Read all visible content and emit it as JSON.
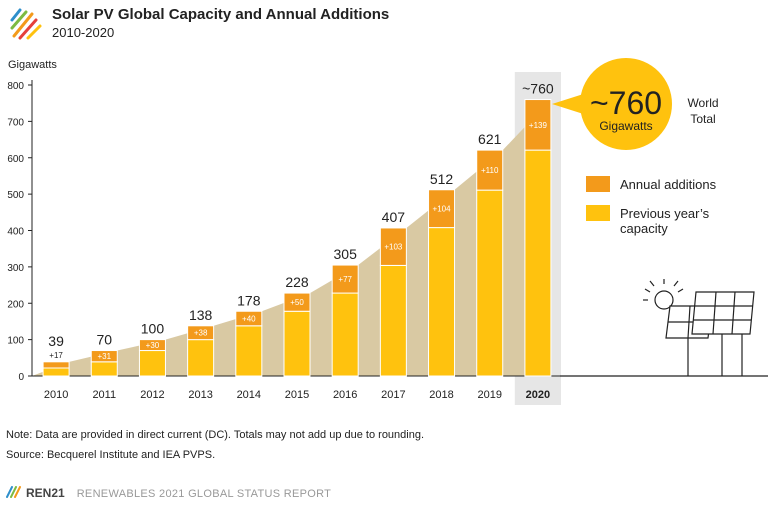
{
  "header": {
    "title": "Solar PV Global Capacity and Annual Additions",
    "subtitle": "2010-2020"
  },
  "chart_data": {
    "type": "bar",
    "stacked": true,
    "ylabel": "Gigawatts",
    "ylim": [
      0,
      800
    ],
    "yticks": [
      0,
      100,
      200,
      300,
      400,
      500,
      600,
      700,
      800
    ],
    "categories": [
      "2010",
      "2011",
      "2012",
      "2013",
      "2014",
      "2015",
      "2016",
      "2017",
      "2018",
      "2019",
      "2020"
    ],
    "series": [
      {
        "name": "Previous year's capacity",
        "color": "#FFC20E",
        "values": [
          22,
          39,
          70,
          100,
          138,
          178,
          228,
          304,
          408,
          511,
          621
        ]
      },
      {
        "name": "Annual additions",
        "color": "#F39A1B",
        "values": [
          17,
          31,
          30,
          38,
          40,
          50,
          77,
          103,
          104,
          110,
          139
        ]
      }
    ],
    "addition_labels": [
      "+17",
      "+31",
      "+30",
      "+38",
      "+40",
      "+50",
      "+77",
      "+103",
      "+104",
      "+110",
      "+139"
    ],
    "total_labels": [
      "39",
      "70",
      "100",
      "138",
      "178",
      "228",
      "305",
      "407",
      "512",
      "621",
      "~760"
    ],
    "highlight_category": "2020",
    "area_color": "#D9C9A3",
    "callout": {
      "value": "~760",
      "unit": "Gigawatts",
      "label_line1": "World",
      "label_line2": "Total",
      "color": "#FFC20E"
    },
    "legend": [
      {
        "label_lines": [
          "Annual additions"
        ],
        "color": "#F39A1B"
      },
      {
        "label_lines": [
          "Previous year’s",
          "capacity"
        ],
        "color": "#FFC20E"
      }
    ],
    "legend_position": "right"
  },
  "notes": {
    "line1": "Note: Data are provided in direct current (DC). Totals may not add up due to rounding.",
    "line2": "Source: Becquerel Institute and IEA PVPS."
  },
  "footer": {
    "brand": "REN21",
    "report": "RENEWABLES 2021 GLOBAL STATUS REPORT"
  }
}
